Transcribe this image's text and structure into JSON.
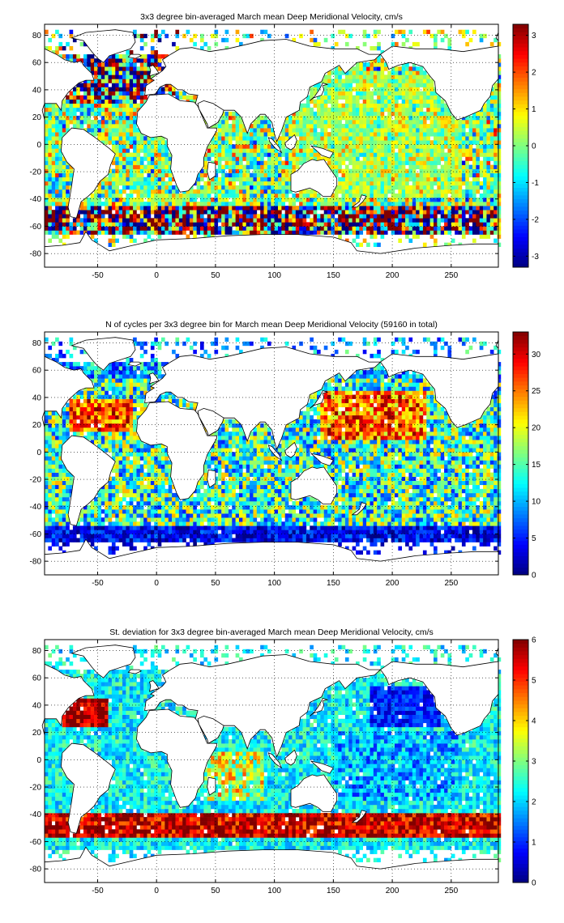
{
  "chart_data": [
    {
      "type": "heatmap",
      "title": "3x3 degree bin-averaged March mean Deep Meridional Velocity, cm/s",
      "xlabel": "",
      "ylabel": "",
      "xlim": [
        -95,
        290
      ],
      "ylim": [
        -90,
        88
      ],
      "xticks": [
        -50,
        0,
        50,
        100,
        150,
        200,
        250
      ],
      "yticks": [
        80,
        60,
        40,
        20,
        0,
        -20,
        -40,
        -60,
        -80
      ],
      "grid": "dotted",
      "colorbar": {
        "clim": [
          -3.3,
          3.3
        ],
        "ticks": [
          3,
          2,
          1,
          0,
          -1,
          -2,
          -3
        ]
      },
      "bin_size_deg": 3,
      "field": "velocity"
    },
    {
      "type": "heatmap",
      "title": "N of cycles per 3x3 degree bin for March mean Deep Meridional Velocity (59160 in total)",
      "xlabel": "",
      "ylabel": "",
      "xlim": [
        -95,
        290
      ],
      "ylim": [
        -90,
        88
      ],
      "xticks": [
        -50,
        0,
        50,
        100,
        150,
        200,
        250
      ],
      "yticks": [
        80,
        60,
        40,
        20,
        0,
        -20,
        -40,
        -60,
        -80
      ],
      "grid": "dotted",
      "colorbar": {
        "clim": [
          0,
          33
        ],
        "ticks": [
          30,
          25,
          20,
          15,
          10,
          5,
          0
        ]
      },
      "bin_size_deg": 3,
      "field": "count"
    },
    {
      "type": "heatmap",
      "title": "St. deviation for 3x3 degree bin-averaged March mean Deep Meridional Velocity, cm/s",
      "xlabel": "",
      "ylabel": "",
      "xlim": [
        -95,
        290
      ],
      "ylim": [
        -90,
        88
      ],
      "xticks": [
        -50,
        0,
        50,
        100,
        150,
        200,
        250
      ],
      "yticks": [
        80,
        60,
        40,
        20,
        0,
        -20,
        -40,
        -60,
        -80
      ],
      "grid": "dotted",
      "colorbar": {
        "clim": [
          0,
          6
        ],
        "ticks": [
          6,
          5,
          4,
          3,
          2,
          1,
          0
        ]
      },
      "bin_size_deg": 3,
      "field": "stdev"
    }
  ]
}
